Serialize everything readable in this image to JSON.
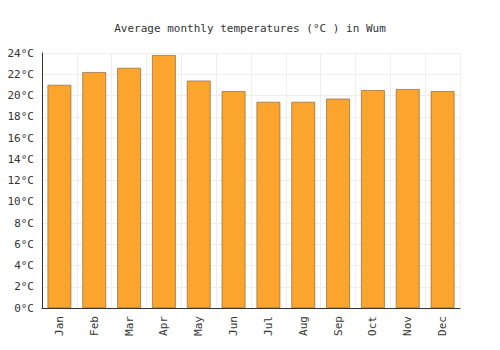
{
  "chart_data": {
    "type": "bar",
    "title": "Average monthly temperatures (°C ) in Wum",
    "categories": [
      "Jan",
      "Feb",
      "Mar",
      "Apr",
      "May",
      "Jun",
      "Jul",
      "Aug",
      "Sep",
      "Oct",
      "Nov",
      "Dec"
    ],
    "values": [
      21.0,
      22.2,
      22.6,
      23.8,
      21.4,
      20.4,
      19.4,
      19.4,
      19.7,
      20.5,
      20.6,
      20.4
    ],
    "color": "#fba52e",
    "ylim": [
      0,
      24
    ],
    "yticks": [
      {
        "value": 0,
        "label": "0°C"
      },
      {
        "value": 2,
        "label": "2°C"
      },
      {
        "value": 4,
        "label": "4°C"
      },
      {
        "value": 6,
        "label": "6°C"
      },
      {
        "value": 8,
        "label": "8°C"
      },
      {
        "value": 10,
        "label": "10°C"
      },
      {
        "value": 12,
        "label": "12°C"
      },
      {
        "value": 14,
        "label": "14°C"
      },
      {
        "value": 16,
        "label": "16°C"
      },
      {
        "value": 18,
        "label": "18°C"
      },
      {
        "value": 20,
        "label": "20°C"
      },
      {
        "value": 22,
        "label": "22°C"
      },
      {
        "value": 24,
        "label": "24°C"
      }
    ],
    "grid": true
  }
}
